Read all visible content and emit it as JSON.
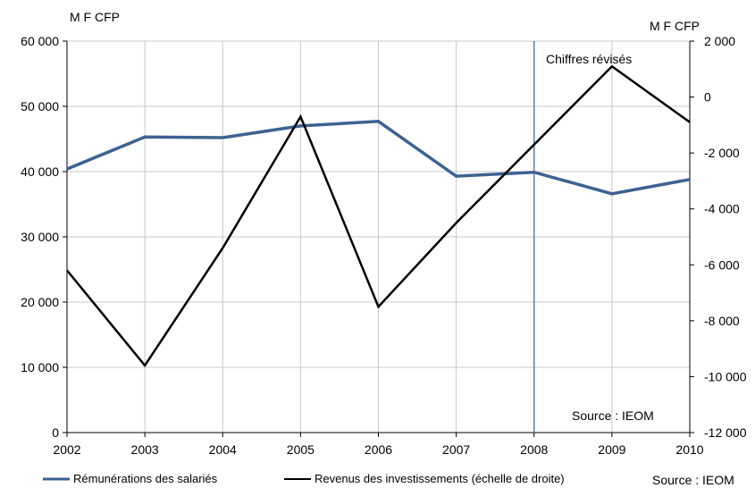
{
  "chart_data": {
    "type": "line",
    "x": [
      2002,
      2003,
      2004,
      2005,
      2006,
      2007,
      2008,
      2009,
      2010
    ],
    "series": [
      {
        "name": "Rémunérations des salariés",
        "axis": "left",
        "color": "#3d6291",
        "values": [
          40400,
          45300,
          45200,
          47000,
          47700,
          39300,
          39900,
          36600,
          38800
        ]
      },
      {
        "name": "Revenus des investissements (échelle de droite)",
        "axis": "right",
        "color": "#000000",
        "values": [
          -6200,
          -9600,
          -5400,
          -700,
          -7500,
          -4500,
          -1700,
          1100,
          -900
        ]
      }
    ],
    "left_axis": {
      "unit": "M F CFP",
      "ylim": [
        0,
        60000
      ],
      "ticks": [
        0,
        10000,
        20000,
        30000,
        40000,
        50000,
        60000
      ],
      "tick_labels": [
        "0",
        "10 000",
        "20 000",
        "30 000",
        "40 000",
        "50 000",
        "60 000"
      ]
    },
    "right_axis": {
      "unit": "M F CFP",
      "ylim": [
        -12000,
        2000
      ],
      "ticks": [
        -12000,
        -10000,
        -8000,
        -6000,
        -4000,
        -2000,
        0,
        2000
      ],
      "tick_labels": [
        "-12 000",
        "-10 000",
        "-8 000",
        "-6 000",
        "-4 000",
        "-2 000",
        "0",
        "2 000"
      ]
    },
    "x_tick_labels": [
      "2002",
      "2003",
      "2004",
      "2005",
      "2006",
      "2007",
      "2008",
      "2009",
      "2010"
    ],
    "grid": true,
    "revision_marker": {
      "x": 2008,
      "label": "Chiffres révisés",
      "color": "#5b7fb5"
    },
    "inner_source": "Source : IEOM",
    "outer_source": "Source : IEOM",
    "legend_position": "bottom"
  }
}
